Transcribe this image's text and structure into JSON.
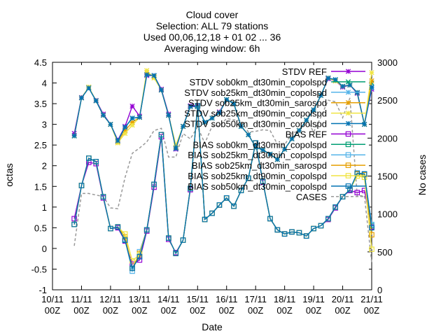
{
  "chart_data": {
    "type": "line",
    "title": [
      "Cloud cover",
      "Selection: ALL     79 stations",
      "Used 00,06,12,18 + 01 02 ... 36",
      "Averaging window:  6h"
    ],
    "xlabel": "Date",
    "ylabel": "octas",
    "y2label": "No cases",
    "ylim": [
      -1,
      4.5
    ],
    "y2lim": [
      0,
      3000
    ],
    "yticks": [
      "-1",
      "-0.5",
      "0",
      "0.5",
      "1",
      "1.5",
      "2",
      "2.5",
      "3",
      "3.5",
      "4",
      "4.5"
    ],
    "y2ticks": [
      "0",
      "500",
      "1000",
      "1500",
      "2000",
      "2500",
      "3000"
    ],
    "xticks": [
      [
        "10/11",
        "00Z"
      ],
      [
        "11/11",
        "00Z"
      ],
      [
        "12/11",
        "00Z"
      ],
      [
        "13/11",
        "00Z"
      ],
      [
        "14/11",
        "00Z"
      ],
      [
        "15/11",
        "00Z"
      ],
      [
        "16/11",
        "00Z"
      ],
      [
        "17/11",
        "00Z"
      ],
      [
        "18/11",
        "00Z"
      ],
      [
        "19/11",
        "00Z"
      ],
      [
        "20/11",
        "00Z"
      ],
      [
        "21/11",
        "00Z"
      ]
    ],
    "grid": false,
    "legend_position": "top-right",
    "x_days": [
      0.75,
      1.0,
      1.25,
      1.5,
      1.75,
      2.0,
      2.25,
      2.5,
      2.75,
      3.0,
      3.25,
      3.5,
      3.75,
      4.0,
      4.25,
      4.5,
      4.75,
      5.0,
      5.25,
      5.5,
      5.75,
      6.0,
      6.25,
      6.5,
      6.75,
      7.0,
      7.25,
      7.5,
      7.75,
      8.0,
      8.25,
      8.5,
      8.75,
      9.0,
      9.25,
      9.5,
      9.75,
      10.0,
      10.25,
      10.5,
      10.75,
      11.0
    ],
    "series": [
      {
        "name": "STDV REF",
        "color": "#9400d3",
        "marker": "star",
        "axis": "y1",
        "values": [
          2.78,
          3.65,
          3.88,
          3.58,
          3.25,
          3.0,
          2.62,
          2.95,
          3.44,
          3.2,
          4.18,
          4.18,
          3.85,
          3.25,
          2.4,
          2.95,
          3.45,
          3.45,
          3.05,
          3.15,
          3.3,
          3.6,
          3.5,
          2.95,
          2.75,
          2.45,
          2.38,
          2.28,
          2.15,
          2.4,
          2.65,
          2.85,
          3.1,
          3.35,
          3.7,
          4.1,
          4.05,
          3.9,
          3.95,
          3.75,
          3.0,
          3.85
        ]
      },
      {
        "name": "STDV sob0km_dt30min_copolspd",
        "color": "#009e73",
        "marker": "cross",
        "axis": "y1",
        "values": [
          2.72,
          3.64,
          3.88,
          3.57,
          3.22,
          3.0,
          2.6,
          2.93,
          3.15,
          3.17,
          4.2,
          4.18,
          3.83,
          3.22,
          2.42,
          2.95,
          3.43,
          3.43,
          3.05,
          3.15,
          3.28,
          3.6,
          3.5,
          2.95,
          2.75,
          2.45,
          2.38,
          2.28,
          2.15,
          2.4,
          2.65,
          2.85,
          3.1,
          3.35,
          3.7,
          4.12,
          4.08,
          3.92,
          3.95,
          3.77,
          3.0,
          4.0
        ]
      },
      {
        "name": "STDV sob25km_dt30min_copolspd",
        "color": "#56b4e9",
        "marker": "star",
        "axis": "y1",
        "values": [
          2.72,
          3.64,
          3.88,
          3.57,
          3.22,
          3.0,
          2.6,
          2.93,
          3.15,
          3.17,
          4.2,
          4.18,
          3.83,
          3.22,
          2.42,
          2.95,
          3.43,
          3.43,
          3.05,
          3.15,
          3.28,
          3.6,
          3.5,
          2.95,
          2.75,
          2.45,
          2.38,
          2.28,
          2.15,
          2.4,
          2.65,
          2.85,
          3.1,
          3.35,
          3.7,
          4.12,
          4.08,
          3.92,
          3.95,
          3.77,
          3.0,
          3.88
        ]
      },
      {
        "name": "STDV sob25km_dt30min_sarospd",
        "color": "#e69f00",
        "marker": "star",
        "axis": "y1",
        "values": [
          2.72,
          3.64,
          3.9,
          3.57,
          3.22,
          3.0,
          2.58,
          2.85,
          3.05,
          3.17,
          4.25,
          4.15,
          3.83,
          3.22,
          2.45,
          2.95,
          3.43,
          3.43,
          3.05,
          3.15,
          3.28,
          3.6,
          3.5,
          2.95,
          2.75,
          2.45,
          2.38,
          2.28,
          2.15,
          2.4,
          2.65,
          2.85,
          3.1,
          3.35,
          3.7,
          4.12,
          4.05,
          3.92,
          3.95,
          3.77,
          3.0,
          4.05
        ]
      },
      {
        "name": "STDV sob25km_dt90min_copolspd",
        "color": "#f0e442",
        "marker": "star",
        "axis": "y1",
        "values": [
          2.72,
          3.64,
          3.9,
          3.57,
          3.22,
          3.0,
          2.55,
          2.78,
          2.98,
          3.17,
          4.3,
          4.12,
          3.83,
          3.22,
          2.5,
          2.95,
          3.43,
          3.43,
          3.05,
          3.15,
          3.28,
          3.6,
          3.5,
          2.95,
          2.75,
          2.45,
          2.38,
          2.28,
          2.15,
          2.4,
          2.65,
          2.85,
          3.1,
          3.35,
          3.7,
          4.12,
          4.05,
          3.92,
          3.95,
          3.77,
          3.0,
          4.25
        ]
      },
      {
        "name": "STDV sob50km_dt30min_copolspd",
        "color": "#0072b2",
        "marker": "star",
        "axis": "y1",
        "values": [
          2.72,
          3.64,
          3.88,
          3.57,
          3.22,
          3.0,
          2.6,
          2.93,
          3.15,
          3.17,
          4.2,
          4.18,
          3.83,
          3.22,
          2.42,
          2.95,
          3.43,
          3.43,
          3.05,
          3.15,
          3.28,
          3.6,
          3.5,
          2.95,
          2.75,
          2.45,
          2.38,
          2.28,
          2.15,
          2.4,
          2.65,
          2.85,
          3.1,
          3.35,
          3.7,
          4.12,
          4.08,
          3.92,
          3.95,
          3.77,
          3.0,
          3.9
        ]
      },
      {
        "name": "BIAS REF",
        "color": "#9400d3",
        "marker": "square",
        "axis": "y1",
        "values": [
          0.72,
          1.52,
          2.08,
          2.05,
          1.22,
          0.48,
          0.5,
          0.18,
          -0.38,
          -0.28,
          0.42,
          1.48,
          2.7,
          0.22,
          -0.1,
          0.2,
          1.42,
          3.45,
          0.7,
          0.85,
          1.05,
          1.22,
          1.02,
          1.4,
          1.7,
          2.55,
          1.6,
          0.72,
          0.45,
          0.35,
          0.4,
          0.38,
          0.3,
          0.48,
          0.55,
          0.7,
          0.98,
          1.25,
          1.4,
          1.35,
          1.4,
          0.52
        ]
      },
      {
        "name": "BIAS sob0km_dt30min_copolspd",
        "color": "#009e73",
        "marker": "square",
        "axis": "y1",
        "values": [
          0.58,
          1.52,
          2.18,
          2.1,
          1.25,
          0.48,
          0.52,
          0.2,
          -0.48,
          -0.2,
          0.45,
          1.55,
          2.75,
          0.25,
          -0.12,
          0.2,
          1.45,
          3.45,
          0.7,
          0.85,
          1.05,
          1.22,
          1.02,
          1.4,
          1.7,
          2.55,
          1.62,
          0.72,
          0.45,
          0.35,
          0.4,
          0.38,
          0.3,
          0.48,
          0.55,
          0.72,
          1.0,
          1.25,
          1.42,
          1.82,
          1.8,
          0.55
        ]
      },
      {
        "name": "BIAS sob25km_dt30min_copolspd",
        "color": "#56b4e9",
        "marker": "square",
        "axis": "y1",
        "values": [
          0.58,
          1.52,
          2.18,
          2.1,
          1.25,
          0.48,
          0.52,
          0.22,
          -0.55,
          -0.08,
          0.45,
          1.55,
          2.75,
          0.25,
          -0.12,
          0.2,
          1.45,
          3.45,
          0.7,
          0.85,
          1.05,
          1.22,
          1.02,
          1.4,
          1.7,
          2.55,
          1.62,
          0.72,
          0.45,
          0.35,
          0.4,
          0.38,
          0.3,
          0.48,
          0.55,
          0.72,
          1.0,
          1.25,
          1.42,
          1.82,
          1.8,
          0.58
        ]
      },
      {
        "name": "BIAS sob25km_dt30min_sarospd",
        "color": "#e69f00",
        "marker": "square",
        "axis": "y1",
        "values": [
          0.58,
          1.52,
          2.18,
          2.1,
          1.25,
          0.48,
          0.52,
          0.28,
          -0.48,
          -0.12,
          0.45,
          1.55,
          2.75,
          0.25,
          -0.12,
          0.2,
          1.45,
          3.45,
          0.7,
          0.85,
          1.05,
          1.22,
          1.02,
          1.4,
          1.7,
          2.55,
          1.62,
          0.72,
          0.45,
          0.35,
          0.4,
          0.38,
          0.3,
          0.48,
          0.55,
          0.72,
          1.0,
          1.25,
          1.42,
          1.8,
          1.78,
          0.33
        ]
      },
      {
        "name": "BIAS sob25km_dt90min_copolspd",
        "color": "#f0e442",
        "marker": "square",
        "axis": "y1",
        "values": [
          0.58,
          1.52,
          2.18,
          2.1,
          1.25,
          0.48,
          0.52,
          0.35,
          -0.3,
          -0.15,
          0.45,
          1.55,
          2.75,
          0.25,
          -0.12,
          0.2,
          1.45,
          3.45,
          0.7,
          0.85,
          1.05,
          1.22,
          1.02,
          1.4,
          1.7,
          2.55,
          1.62,
          0.72,
          0.45,
          0.35,
          0.4,
          0.38,
          0.3,
          0.48,
          0.55,
          0.72,
          1.0,
          1.25,
          1.42,
          1.75,
          1.72,
          -0.02
        ]
      },
      {
        "name": "BIAS sob50km_dt30min_copolspd",
        "color": "#0072b2",
        "marker": "square",
        "axis": "y1",
        "values": [
          0.58,
          1.52,
          2.18,
          2.1,
          1.25,
          0.48,
          0.52,
          0.2,
          -0.48,
          -0.2,
          0.45,
          1.55,
          2.75,
          0.25,
          -0.12,
          0.2,
          1.45,
          3.45,
          0.7,
          0.85,
          1.05,
          1.22,
          1.02,
          1.4,
          1.7,
          2.55,
          1.62,
          0.72,
          0.45,
          0.35,
          0.4,
          0.38,
          0.3,
          0.48,
          0.55,
          0.72,
          1.0,
          1.25,
          1.42,
          1.82,
          1.8,
          0.5
        ]
      },
      {
        "name": "CASES",
        "color": "#999999",
        "marker": "none",
        "dashed": true,
        "axis": "y2",
        "values": [
          580,
          1270,
          1270,
          1250,
          1230,
          1080,
          1070,
          1480,
          1800,
          1870,
          1950,
          2100,
          2130,
          1750,
          1750,
          2060,
          1990,
          2150,
          1930,
          2160,
          2160,
          2260,
          2240,
          2230,
          2080,
          2090,
          2110,
          2100,
          1920,
          1910,
          2070,
          2090,
          2250,
          2080,
          2280,
          2500,
          2480,
          2270,
          2530,
          1240,
          1240,
          360
        ]
      }
    ]
  }
}
